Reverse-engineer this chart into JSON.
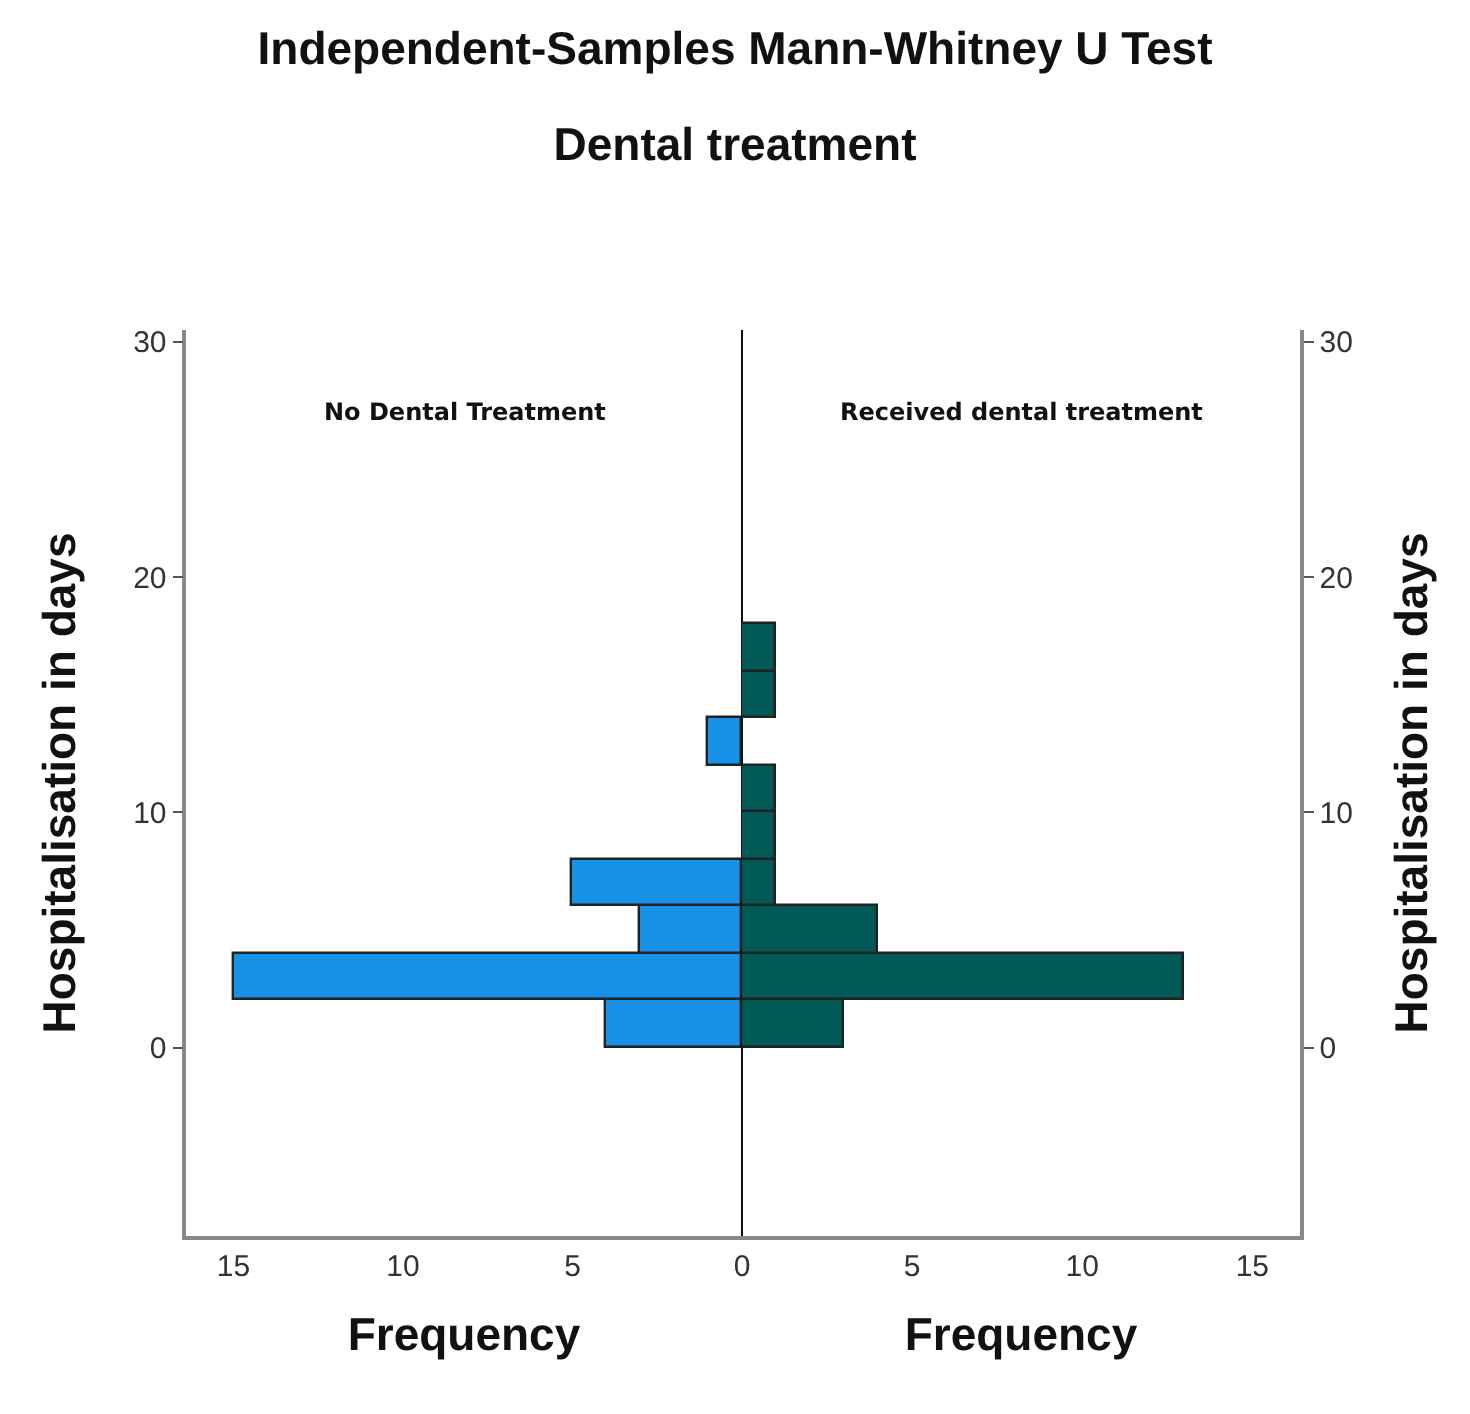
{
  "chart_data": [
    {
      "type": "histogram",
      "title": "Independent-Samples Mann-Whitney U Test",
      "subtitle": "Dental treatment",
      "orientation": "horizontal",
      "annotations": [
        "No Dental Treatment"
      ],
      "xlabel": "Frequency",
      "ylabel": "Hospitalisation in days",
      "bins": [
        0,
        2,
        4,
        6,
        8,
        10,
        12,
        14,
        16,
        18
      ],
      "values": [
        4,
        15,
        3,
        5,
        0,
        0,
        1,
        0,
        0
      ],
      "color": "#1591e8",
      "xlim": [
        16.4,
        0
      ],
      "xticks": [
        15,
        10,
        5
      ],
      "ylim": [
        -8,
        30.5
      ],
      "yticks": [
        0,
        10,
        20,
        30
      ],
      "grid": false
    },
    {
      "type": "histogram",
      "orientation": "horizontal",
      "annotations": [
        "Received dental treatment"
      ],
      "xlabel": "Frequency",
      "ylabel": "Hospitalisation in days",
      "bins": [
        0,
        2,
        4,
        6,
        8,
        10,
        12,
        14,
        16,
        18
      ],
      "values": [
        3,
        13,
        4,
        1,
        1,
        1,
        0,
        1,
        1
      ],
      "color": "#005a55",
      "xlim": [
        0,
        16.4
      ],
      "xticks": [
        0,
        5,
        10,
        15
      ],
      "ylim": [
        -8,
        30.5
      ],
      "yticks": [
        0,
        10,
        20,
        30
      ],
      "grid": false
    }
  ]
}
